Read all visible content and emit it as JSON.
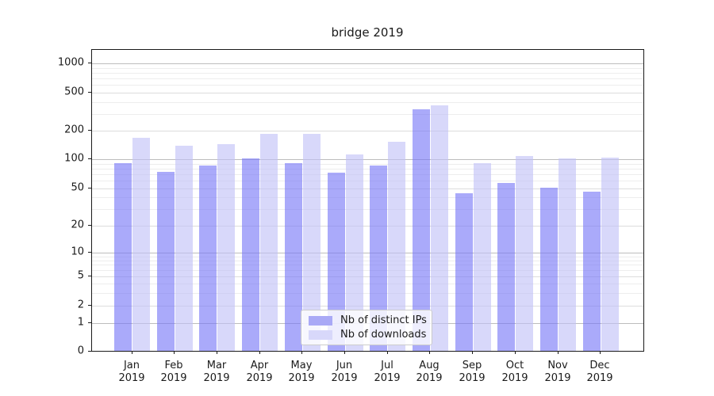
{
  "title": "bridge 2019",
  "legend": {
    "items": [
      {
        "label": "Nb of distinct IPs",
        "color": "#a9a9f6"
      },
      {
        "label": "Nb of downloads",
        "color": "#d8d8fa"
      }
    ]
  },
  "colors": {
    "bar_distinct_ips": "rgba(118,118,247,0.62)",
    "bar_downloads": "rgba(192,192,247,0.62)",
    "grid_decade": "#bdbdbd",
    "grid_labeled": "#dcdcdc",
    "grid_minor": "#ededed",
    "spine": "#1a1a1a"
  },
  "axes": {
    "y_tick_labels": [
      "1000",
      "500",
      "200",
      "100",
      "50",
      "20",
      "10",
      "5",
      "2",
      "1",
      "0"
    ],
    "y_tick_values": [
      1000,
      500,
      200,
      100,
      50,
      20,
      10,
      5,
      2,
      1,
      0
    ],
    "grid_decade_values": [
      1,
      10,
      100,
      1000
    ],
    "grid_labeled_values": [
      2,
      5,
      20,
      50,
      200,
      500
    ],
    "grid_minor_values": [
      3,
      4,
      6,
      7,
      8,
      9,
      30,
      40,
      60,
      70,
      80,
      90,
      300,
      400,
      600,
      700,
      800,
      900
    ],
    "x_labels": [
      {
        "month": "Jan",
        "year": "2019"
      },
      {
        "month": "Feb",
        "year": "2019"
      },
      {
        "month": "Mar",
        "year": "2019"
      },
      {
        "month": "Apr",
        "year": "2019"
      },
      {
        "month": "May",
        "year": "2019"
      },
      {
        "month": "Jun",
        "year": "2019"
      },
      {
        "month": "Jul",
        "year": "2019"
      },
      {
        "month": "Aug",
        "year": "2019"
      },
      {
        "month": "Sep",
        "year": "2019"
      },
      {
        "month": "Oct",
        "year": "2019"
      },
      {
        "month": "Nov",
        "year": "2019"
      },
      {
        "month": "Dec",
        "year": "2019"
      }
    ]
  },
  "chart_data": {
    "type": "bar",
    "title": "bridge 2019",
    "categories": [
      "Jan 2019",
      "Feb 2019",
      "Mar 2019",
      "Apr 2019",
      "May 2019",
      "Jun 2019",
      "Jul 2019",
      "Aug 2019",
      "Sep 2019",
      "Oct 2019",
      "Nov 2019",
      "Dec 2019"
    ],
    "series": [
      {
        "name": "Nb of distinct IPs",
        "values": [
          90,
          73,
          84,
          100,
          89,
          72,
          85,
          327,
          44,
          56,
          50,
          45
        ]
      },
      {
        "name": "Nb of downloads",
        "values": [
          165,
          135,
          142,
          180,
          180,
          110,
          150,
          360,
          89,
          106,
          100,
          102
        ]
      }
    ],
    "xlabel": "",
    "ylabel": "",
    "yscale": "symlog",
    "ylim": [
      0,
      1400
    ],
    "y_ticks": [
      0,
      1,
      2,
      5,
      10,
      20,
      50,
      100,
      200,
      500,
      1000
    ],
    "grid": "both",
    "legend_position": "lower center"
  }
}
